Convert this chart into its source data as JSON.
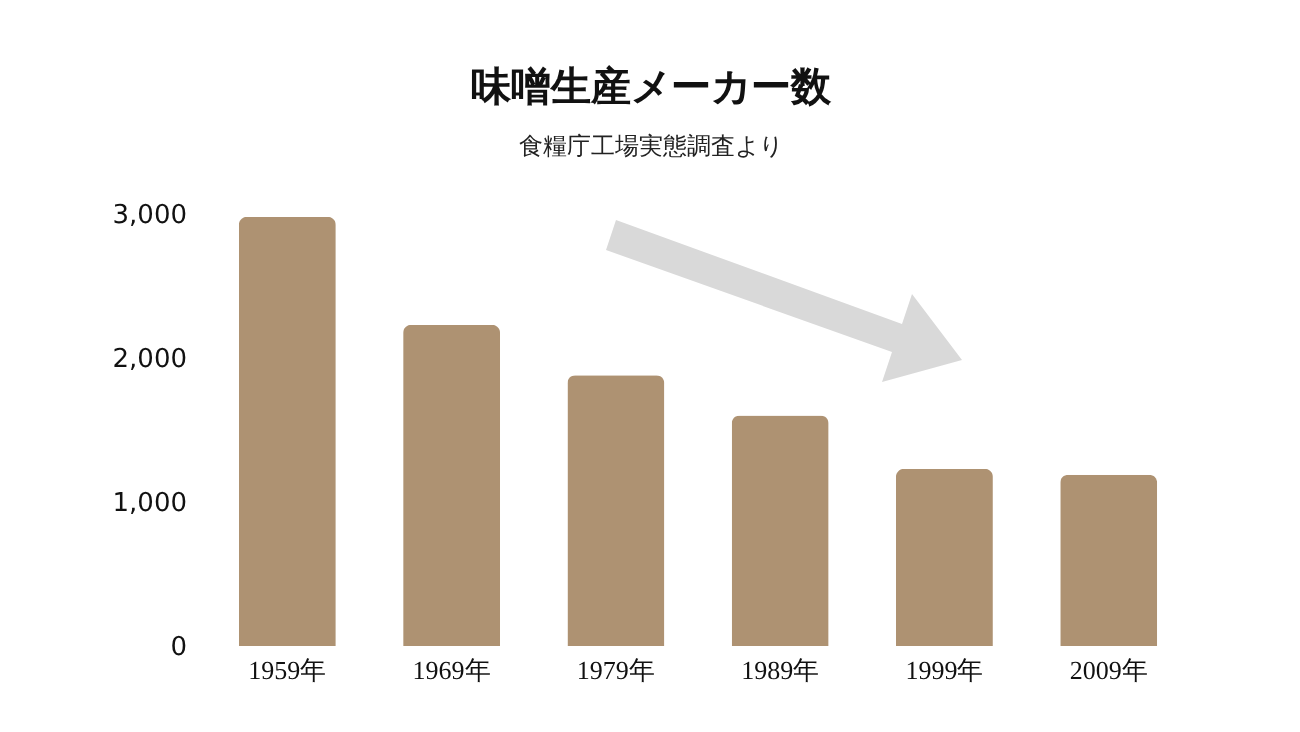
{
  "chart_data": {
    "type": "bar",
    "title": "味噌生産メーカー数",
    "subtitle": "食糧庁工場実態調査より",
    "categories": [
      "1959年",
      "1969年",
      "1979年",
      "1989年",
      "1999年",
      "2009年"
    ],
    "values": [
      2980,
      2230,
      1880,
      1600,
      1230,
      1190
    ],
    "color": "#ae9272",
    "ylim": [
      0,
      3000
    ],
    "yticks": [
      0,
      {
        "value": 1000,
        "label": "1,000"
      },
      {
        "value": 2000,
        "label": "2,000"
      },
      {
        "value": 3000,
        "label": "3,000"
      }
    ],
    "grid": false
  }
}
